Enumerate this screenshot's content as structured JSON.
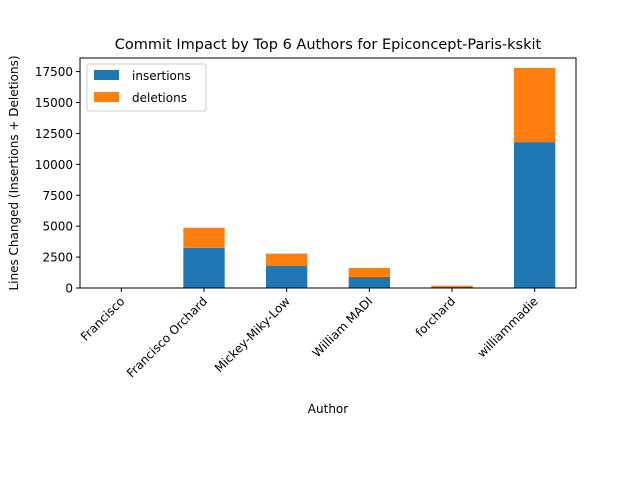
{
  "chart_data": {
    "type": "bar",
    "stacked": true,
    "title": "Commit Impact by Top 6 Authors for Epiconcept-Paris-kskit",
    "xlabel": "Author",
    "ylabel": "Lines Changed (Insertions + Deletions)",
    "categories": [
      "Francisco",
      "Francisco Orchard",
      "Mickey-Miky-Low",
      "William MADI",
      "forchard",
      "williammadie"
    ],
    "series": [
      {
        "name": "insertions",
        "color": "#1f77b4",
        "values": [
          0,
          3250,
          1780,
          900,
          100,
          11800
        ]
      },
      {
        "name": "deletions",
        "color": "#ff7f0e",
        "values": [
          0,
          1620,
          1000,
          720,
          90,
          6000
        ]
      }
    ],
    "ylim": [
      0,
      18600
    ],
    "yticks": [
      0,
      2500,
      5000,
      7500,
      10000,
      12500,
      15000,
      17500
    ],
    "ytick_labels": [
      "0",
      "2500",
      "5000",
      "7500",
      "10000",
      "12500",
      "15000",
      "17500"
    ],
    "grid": false,
    "legend_position": "top-left"
  }
}
